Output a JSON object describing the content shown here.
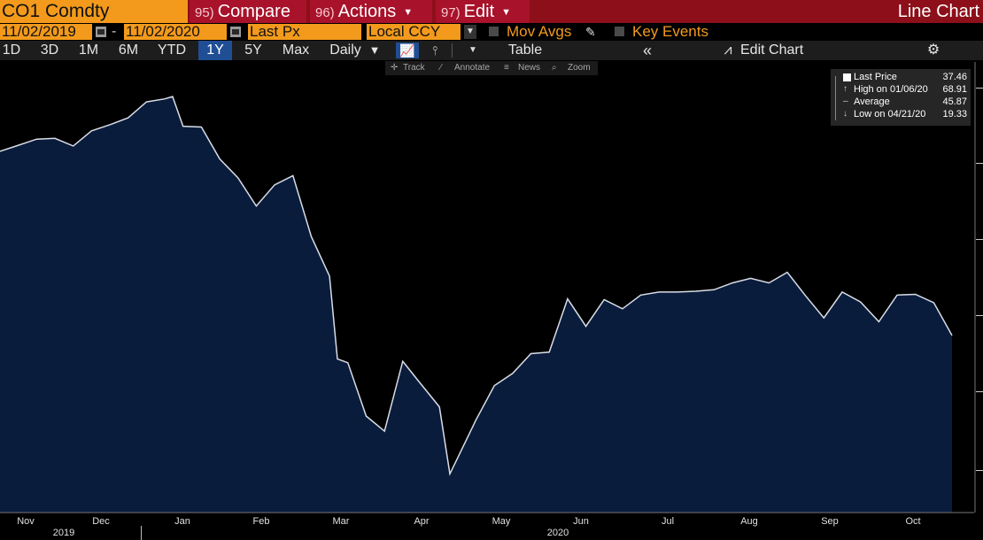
{
  "header": {
    "ticker": "CO1 Comdty",
    "compare_num": "95)",
    "compare": "Compare",
    "actions_num": "96)",
    "actions": "Actions",
    "edit_num": "97)",
    "edit": "Edit",
    "title": "Line Chart"
  },
  "options": {
    "start_date": "11/02/2019",
    "end_date": "11/02/2020",
    "field": "Last Px",
    "currency": "Local CCY",
    "mov_avgs": "Mov Avgs",
    "key_events": "Key Events"
  },
  "toolbar": {
    "periods": [
      "1D",
      "3D",
      "1M",
      "6M",
      "YTD",
      "1Y",
      "5Y",
      "Max"
    ],
    "active_period": "1Y",
    "frequency": "Daily",
    "table": "Table",
    "edit_chart": "Edit Chart"
  },
  "mini_toolbar": {
    "track": "Track",
    "annotate": "Annotate",
    "news": "News",
    "zoom": "Zoom"
  },
  "legend": {
    "last_price_label": "Last Price",
    "last_price": "37.46",
    "high_label": "High on 01/06/20",
    "high": "68.91",
    "average_label": "Average",
    "average": "45.87",
    "low_label": "Low on 04/21/20",
    "low": "19.33"
  },
  "colors": {
    "line": "#d9dde6",
    "fill": "#0a1c3c",
    "accent_orange": "#f39a1c",
    "header_red": "#8c0f1a",
    "active_blue": "#1f4e95"
  },
  "chart_data": {
    "type": "area",
    "x_tick_labels": [
      "Nov",
      "Dec",
      "Jan",
      "Feb",
      "Mar",
      "Apr",
      "May",
      "Jun",
      "Jul",
      "Aug",
      "Sep",
      "Oct"
    ],
    "year_labels": [
      "2019",
      "2020"
    ],
    "ylim": [
      15,
      74
    ],
    "grid": false,
    "legend_placement": "top-right",
    "series": [
      {
        "x": [
          "2019-11-01",
          "2019-11-08",
          "2019-11-15",
          "2019-11-22",
          "2019-11-29",
          "2019-12-06",
          "2019-12-13",
          "2019-12-20",
          "2019-12-27",
          "2020-01-03",
          "2020-01-06",
          "2020-01-10",
          "2020-01-17",
          "2020-01-24",
          "2020-01-31",
          "2020-02-07",
          "2020-02-14",
          "2020-02-21",
          "2020-02-28",
          "2020-03-06",
          "2020-03-09",
          "2020-03-13",
          "2020-03-20",
          "2020-03-27",
          "2020-04-03",
          "2020-04-09",
          "2020-04-17",
          "2020-04-21",
          "2020-04-24",
          "2020-05-01",
          "2020-05-08",
          "2020-05-15",
          "2020-05-22",
          "2020-05-29",
          "2020-06-05",
          "2020-06-12",
          "2020-06-19",
          "2020-06-26",
          "2020-07-03",
          "2020-07-10",
          "2020-07-17",
          "2020-07-24",
          "2020-07-31",
          "2020-08-07",
          "2020-08-14",
          "2020-08-21",
          "2020-08-28",
          "2020-09-04",
          "2020-09-11",
          "2020-09-18",
          "2020-09-25",
          "2020-10-02",
          "2020-10-09",
          "2020-10-16",
          "2020-10-23",
          "2020-10-30"
        ],
        "values": [
          61.7,
          62.5,
          63.3,
          63.4,
          62.4,
          64.4,
          65.2,
          66.1,
          68.2,
          68.6,
          68.9,
          65.0,
          64.9,
          60.7,
          58.2,
          54.5,
          57.3,
          58.5,
          50.5,
          45.3,
          34.4,
          33.9,
          26.9,
          24.9,
          34.1,
          31.5,
          28.1,
          19.3,
          21.4,
          26.4,
          30.9,
          32.5,
          35.1,
          35.3,
          42.3,
          38.7,
          42.2,
          41.0,
          42.8,
          43.2,
          43.2,
          43.3,
          43.5,
          44.4,
          45.0,
          44.4,
          45.8,
          42.7,
          39.8,
          43.2,
          41.9,
          39.3,
          42.8,
          42.9,
          41.8,
          37.5
        ]
      }
    ]
  }
}
